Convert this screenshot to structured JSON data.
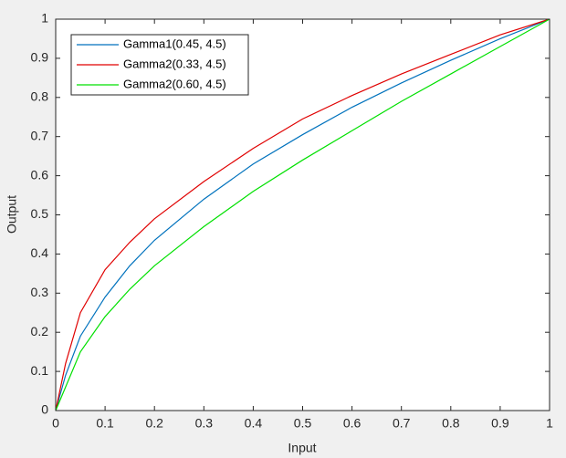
{
  "chart_data": {
    "type": "line",
    "xlabel": "Input",
    "ylabel": "Output",
    "x": [
      0,
      0.02,
      0.05,
      0.1,
      0.15,
      0.2,
      0.3,
      0.4,
      0.5,
      0.6,
      0.7,
      0.8,
      0.9,
      1
    ],
    "series": [
      {
        "name": "Gamma1(0.45, 4.5)",
        "color": "#0072bd",
        "values": [
          0,
          0.09,
          0.19,
          0.29,
          0.37,
          0.435,
          0.54,
          0.63,
          0.705,
          0.775,
          0.837,
          0.895,
          0.95,
          1
        ]
      },
      {
        "name": "Gamma2(0.33, 4.5)",
        "color": "#e00000",
        "values": [
          0,
          0.12,
          0.25,
          0.36,
          0.43,
          0.49,
          0.585,
          0.67,
          0.745,
          0.805,
          0.86,
          0.91,
          0.96,
          1
        ]
      },
      {
        "name": "Gamma2(0.60, 4.5)",
        "color": "#00e000",
        "values": [
          0,
          0.06,
          0.15,
          0.24,
          0.31,
          0.37,
          0.47,
          0.56,
          0.64,
          0.715,
          0.79,
          0.86,
          0.93,
          1
        ]
      }
    ],
    "xlim": [
      0,
      1
    ],
    "ylim": [
      0,
      1
    ],
    "xticks": [
      0,
      0.1,
      0.2,
      0.3,
      0.4,
      0.5,
      0.6,
      0.7,
      0.8,
      0.9,
      1
    ],
    "yticks": [
      0,
      0.1,
      0.2,
      0.3,
      0.4,
      0.5,
      0.6,
      0.7,
      0.8,
      0.9,
      1
    ],
    "legend": "northwest",
    "grid": false
  }
}
